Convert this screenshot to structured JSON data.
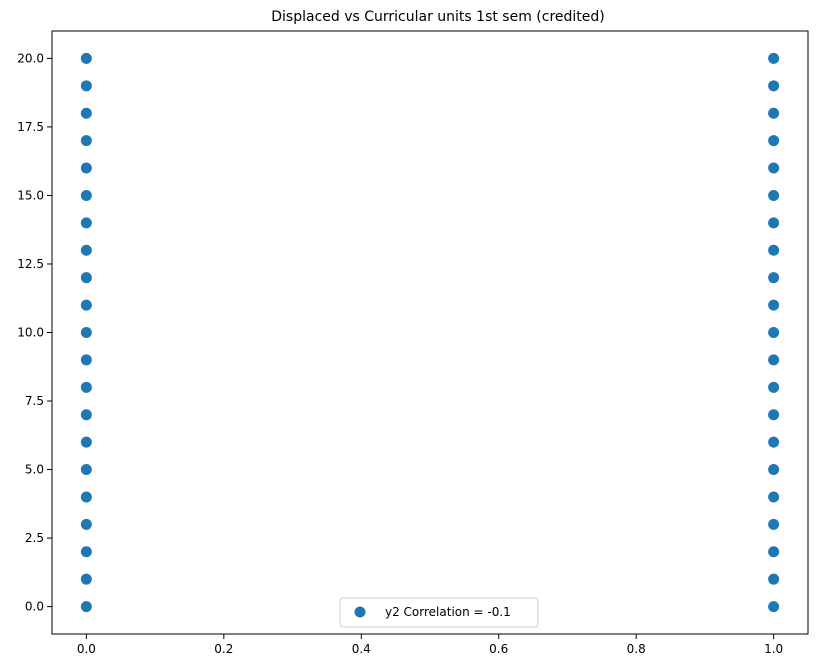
{
  "chart_data": {
    "type": "scatter",
    "title": "Displaced vs Curricular units 1st sem (credited)",
    "xlabel": "",
    "ylabel": "",
    "xlim": [
      -0.05,
      1.05
    ],
    "ylim": [
      -1.0,
      21.0
    ],
    "x_ticks": [
      "0.0",
      "0.2",
      "0.4",
      "0.6",
      "0.8",
      "1.0"
    ],
    "y_ticks": [
      "0.0",
      "2.5",
      "5.0",
      "7.5",
      "10.0",
      "12.5",
      "15.0",
      "17.5",
      "20.0"
    ],
    "grid": false,
    "legend_position": "bottom-center",
    "series": [
      {
        "name": "y2 Correlation = -0.1",
        "color": "#1f77b4",
        "points": [
          {
            "x": 0,
            "y": 0
          },
          {
            "x": 0,
            "y": 1
          },
          {
            "x": 0,
            "y": 2
          },
          {
            "x": 0,
            "y": 3
          },
          {
            "x": 0,
            "y": 4
          },
          {
            "x": 0,
            "y": 5
          },
          {
            "x": 0,
            "y": 6
          },
          {
            "x": 0,
            "y": 7
          },
          {
            "x": 0,
            "y": 8
          },
          {
            "x": 0,
            "y": 9
          },
          {
            "x": 0,
            "y": 10
          },
          {
            "x": 0,
            "y": 11
          },
          {
            "x": 0,
            "y": 12
          },
          {
            "x": 0,
            "y": 13
          },
          {
            "x": 0,
            "y": 14
          },
          {
            "x": 0,
            "y": 15
          },
          {
            "x": 0,
            "y": 16
          },
          {
            "x": 0,
            "y": 17
          },
          {
            "x": 0,
            "y": 18
          },
          {
            "x": 0,
            "y": 19
          },
          {
            "x": 0,
            "y": 20
          },
          {
            "x": 1,
            "y": 0
          },
          {
            "x": 1,
            "y": 1
          },
          {
            "x": 1,
            "y": 2
          },
          {
            "x": 1,
            "y": 3
          },
          {
            "x": 1,
            "y": 4
          },
          {
            "x": 1,
            "y": 5
          },
          {
            "x": 1,
            "y": 6
          },
          {
            "x": 1,
            "y": 7
          },
          {
            "x": 1,
            "y": 8
          },
          {
            "x": 1,
            "y": 9
          },
          {
            "x": 1,
            "y": 10
          },
          {
            "x": 1,
            "y": 11
          },
          {
            "x": 1,
            "y": 12
          },
          {
            "x": 1,
            "y": 13
          },
          {
            "x": 1,
            "y": 14
          },
          {
            "x": 1,
            "y": 15
          },
          {
            "x": 1,
            "y": 16
          },
          {
            "x": 1,
            "y": 17
          },
          {
            "x": 1,
            "y": 18
          },
          {
            "x": 1,
            "y": 19
          },
          {
            "x": 1,
            "y": 20
          }
        ]
      }
    ]
  }
}
